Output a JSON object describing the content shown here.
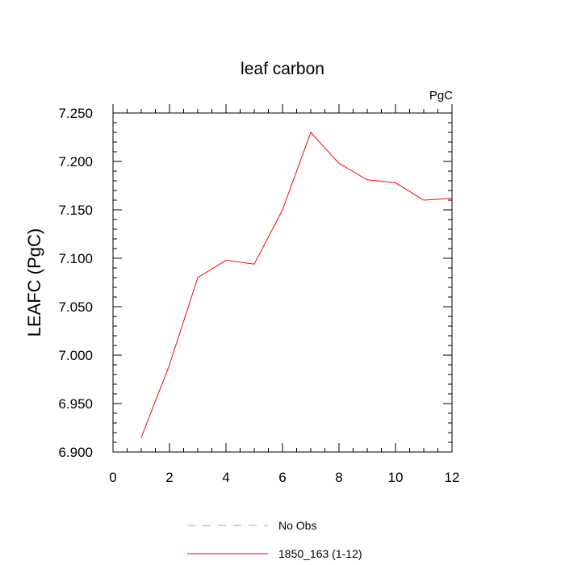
{
  "chart_data": {
    "type": "line",
    "title": "leaf carbon",
    "units_label": "PgC",
    "ylabel": "LEAFC  (PgC)",
    "xlabel": "",
    "xlim": [
      0,
      12
    ],
    "ylim": [
      6.9,
      7.25
    ],
    "xticks": [
      "0",
      "2",
      "4",
      "6",
      "8",
      "10",
      "12"
    ],
    "yticks": [
      "6.900",
      "6.950",
      "7.000",
      "7.050",
      "7.100",
      "7.150",
      "7.200",
      "7.250"
    ],
    "grid": false,
    "legend_position": "bottom",
    "series": [
      {
        "name": "1850_163 (1-12)",
        "color": "#ff0000",
        "style": "solid",
        "x": [
          1,
          2,
          3,
          4,
          5,
          6,
          7,
          8,
          9,
          10,
          11,
          12
        ],
        "y": [
          6.915,
          6.99,
          7.08,
          7.098,
          7.094,
          7.15,
          7.23,
          7.198,
          7.181,
          7.178,
          7.16,
          7.162
        ]
      }
    ],
    "legend": [
      {
        "label": "No Obs",
        "color": "#9a9aff",
        "style": "dashed"
      },
      {
        "label": "1850_163 (1-12)",
        "color": "#ff0000",
        "style": "solid"
      }
    ]
  }
}
